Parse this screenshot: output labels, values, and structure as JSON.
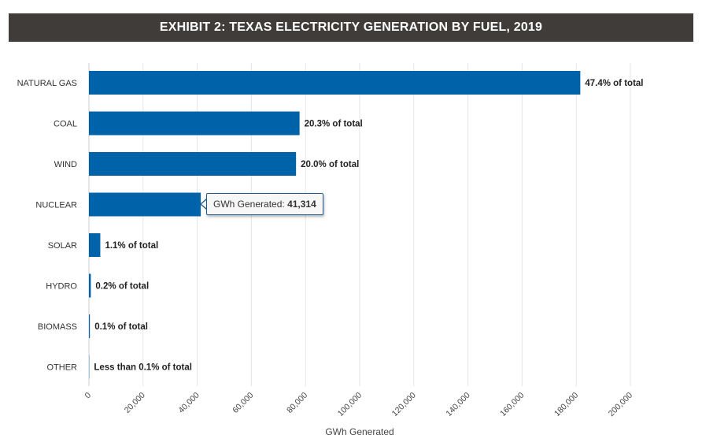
{
  "chart_data": {
    "type": "bar",
    "orientation": "horizontal",
    "title": "EXHIBIT 2: TEXAS ELECTRICITY GENERATION BY FUEL, 2019",
    "xlabel": "GWh Generated",
    "ylabel": "",
    "xlim": [
      0,
      200000
    ],
    "grid": true,
    "categories": [
      "NATURAL GAS",
      "COAL",
      "WIND",
      "NUCLEAR",
      "SOLAR",
      "HYDRO",
      "BIOMASS",
      "OTHER"
    ],
    "values": [
      181500,
      77800,
      76500,
      41314,
      4200,
      700,
      350,
      100
    ],
    "data_labels": [
      "47.4% of total",
      "20.3% of total",
      "20.0% of total",
      "",
      "1.1% of total",
      "0.2% of total",
      "0.1% of total",
      "Less than 0.1% of total"
    ],
    "x_ticks": [
      "0",
      "20,000",
      "40,000",
      "60,000",
      "80,000",
      "100,000",
      "120,000",
      "140,000",
      "160,000",
      "180,000",
      "200,000"
    ],
    "tooltip": {
      "category": "NUCLEAR",
      "label": "GWh Generated:",
      "value": "41,314"
    },
    "colors": {
      "bar": "#0062a8",
      "title_bg": "#3f3c39"
    }
  }
}
